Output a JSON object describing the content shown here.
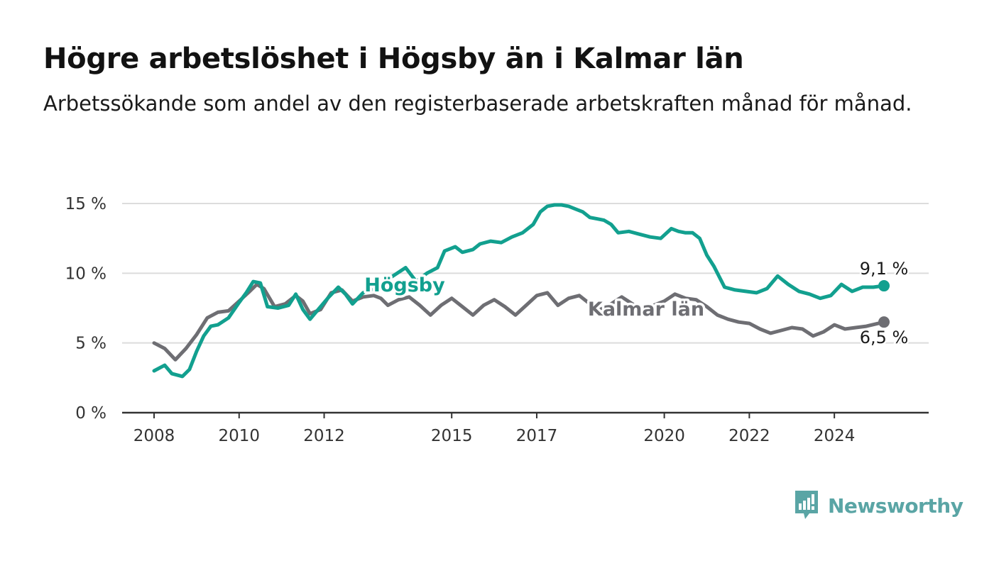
{
  "title": "Högre arbetslöshet i Högsby än i Kalmar län",
  "subtitle": "Arbetssökande som andel av den registerbaserade arbetskraften månad för månad.",
  "brand": {
    "name": "Newsworthy",
    "color": "#5aa5a5",
    "icon": "bar-chart-speech-bubble-icon"
  },
  "chart_data": {
    "type": "line",
    "xlim": [
      "2008-01",
      "2025-12"
    ],
    "ylim": [
      0,
      16
    ],
    "yticks": [
      0,
      5,
      10,
      15
    ],
    "ytick_labels": [
      "0 %",
      "5 %",
      "10 %",
      "15 %"
    ],
    "xticks": [
      "2008",
      "2010",
      "2012",
      "2015",
      "2017",
      "2020",
      "2022",
      "2024"
    ],
    "grid": "horizontal",
    "legend": "inline labels on lines",
    "series": [
      {
        "name": "Högsby",
        "color": "#12a08f",
        "end_label": "9,1 %",
        "points": [
          [
            "2008-01",
            3.0
          ],
          [
            "2008-04",
            3.4
          ],
          [
            "2008-06",
            2.8
          ],
          [
            "2008-09",
            2.6
          ],
          [
            "2008-11",
            3.1
          ],
          [
            "2009-01",
            4.4
          ],
          [
            "2009-03",
            5.5
          ],
          [
            "2009-05",
            6.2
          ],
          [
            "2009-07",
            6.3
          ],
          [
            "2009-10",
            6.8
          ],
          [
            "2010-01",
            7.9
          ],
          [
            "2010-03",
            8.6
          ],
          [
            "2010-05",
            9.4
          ],
          [
            "2010-07",
            9.3
          ],
          [
            "2010-09",
            7.6
          ],
          [
            "2010-12",
            7.5
          ],
          [
            "2011-03",
            7.7
          ],
          [
            "2011-05",
            8.5
          ],
          [
            "2011-07",
            7.4
          ],
          [
            "2011-09",
            6.7
          ],
          [
            "2011-11",
            7.3
          ],
          [
            "2012-02",
            8.2
          ],
          [
            "2012-05",
            9.0
          ],
          [
            "2012-07",
            8.5
          ],
          [
            "2012-09",
            7.8
          ],
          [
            "2012-12",
            8.6
          ],
          [
            "2013-03",
            8.9
          ],
          [
            "2013-06",
            9.4
          ],
          [
            "2013-09",
            9.9
          ],
          [
            "2013-12",
            10.4
          ],
          [
            "2014-03",
            9.4
          ],
          [
            "2014-06",
            10.0
          ],
          [
            "2014-09",
            10.4
          ],
          [
            "2014-11",
            11.6
          ],
          [
            "2015-02",
            11.9
          ],
          [
            "2015-04",
            11.5
          ],
          [
            "2015-07",
            11.7
          ],
          [
            "2015-09",
            12.1
          ],
          [
            "2015-12",
            12.3
          ],
          [
            "2016-03",
            12.2
          ],
          [
            "2016-06",
            12.6
          ],
          [
            "2016-09",
            12.9
          ],
          [
            "2016-12",
            13.5
          ],
          [
            "2017-02",
            14.4
          ],
          [
            "2017-04",
            14.8
          ],
          [
            "2017-06",
            14.9
          ],
          [
            "2017-08",
            14.9
          ],
          [
            "2017-10",
            14.8
          ],
          [
            "2017-12",
            14.6
          ],
          [
            "2018-02",
            14.4
          ],
          [
            "2018-04",
            14.0
          ],
          [
            "2018-06",
            13.9
          ],
          [
            "2018-08",
            13.8
          ],
          [
            "2018-10",
            13.5
          ],
          [
            "2018-12",
            12.9
          ],
          [
            "2019-03",
            13.0
          ],
          [
            "2019-06",
            12.8
          ],
          [
            "2019-09",
            12.6
          ],
          [
            "2019-12",
            12.5
          ],
          [
            "2020-03",
            13.2
          ],
          [
            "2020-05",
            13.0
          ],
          [
            "2020-07",
            12.9
          ],
          [
            "2020-09",
            12.9
          ],
          [
            "2020-11",
            12.5
          ],
          [
            "2021-01",
            11.3
          ],
          [
            "2021-03",
            10.5
          ],
          [
            "2021-06",
            9.0
          ],
          [
            "2021-09",
            8.8
          ],
          [
            "2021-12",
            8.7
          ],
          [
            "2022-03",
            8.6
          ],
          [
            "2022-06",
            8.9
          ],
          [
            "2022-09",
            9.8
          ],
          [
            "2022-12",
            9.2
          ],
          [
            "2023-03",
            8.7
          ],
          [
            "2023-06",
            8.5
          ],
          [
            "2023-09",
            8.2
          ],
          [
            "2023-12",
            8.4
          ],
          [
            "2024-03",
            9.2
          ],
          [
            "2024-06",
            8.7
          ],
          [
            "2024-09",
            9.0
          ],
          [
            "2024-12",
            9.0
          ],
          [
            "2025-03",
            9.1
          ]
        ]
      },
      {
        "name": "Kalmar län",
        "color": "#6e6e73",
        "end_label": "6,5 %",
        "points": [
          [
            "2008-01",
            5.0
          ],
          [
            "2008-04",
            4.6
          ],
          [
            "2008-07",
            3.8
          ],
          [
            "2008-10",
            4.6
          ],
          [
            "2009-01",
            5.6
          ],
          [
            "2009-04",
            6.8
          ],
          [
            "2009-07",
            7.2
          ],
          [
            "2009-10",
            7.3
          ],
          [
            "2010-01",
            8.0
          ],
          [
            "2010-04",
            8.7
          ],
          [
            "2010-06",
            9.2
          ],
          [
            "2010-08",
            8.9
          ],
          [
            "2010-11",
            7.6
          ],
          [
            "2011-02",
            7.8
          ],
          [
            "2011-05",
            8.4
          ],
          [
            "2011-07",
            8.0
          ],
          [
            "2011-09",
            7.1
          ],
          [
            "2011-12",
            7.4
          ],
          [
            "2012-03",
            8.6
          ],
          [
            "2012-06",
            8.8
          ],
          [
            "2012-09",
            8.0
          ],
          [
            "2012-12",
            8.3
          ],
          [
            "2013-03",
            8.4
          ],
          [
            "2013-05",
            8.2
          ],
          [
            "2013-07",
            7.7
          ],
          [
            "2013-10",
            8.1
          ],
          [
            "2014-01",
            8.3
          ],
          [
            "2014-04",
            7.7
          ],
          [
            "2014-07",
            7.0
          ],
          [
            "2014-10",
            7.7
          ],
          [
            "2015-01",
            8.2
          ],
          [
            "2015-04",
            7.6
          ],
          [
            "2015-07",
            7.0
          ],
          [
            "2015-10",
            7.7
          ],
          [
            "2016-01",
            8.1
          ],
          [
            "2016-04",
            7.6
          ],
          [
            "2016-07",
            7.0
          ],
          [
            "2016-10",
            7.7
          ],
          [
            "2017-01",
            8.4
          ],
          [
            "2017-04",
            8.6
          ],
          [
            "2017-07",
            7.7
          ],
          [
            "2017-10",
            8.2
          ],
          [
            "2018-01",
            8.4
          ],
          [
            "2018-04",
            7.8
          ],
          [
            "2018-07",
            7.4
          ],
          [
            "2018-10",
            7.8
          ],
          [
            "2019-01",
            8.3
          ],
          [
            "2019-04",
            7.8
          ],
          [
            "2019-07",
            7.3
          ],
          [
            "2019-10",
            7.7
          ],
          [
            "2020-01",
            8.0
          ],
          [
            "2020-04",
            8.5
          ],
          [
            "2020-07",
            8.2
          ],
          [
            "2020-10",
            8.1
          ],
          [
            "2021-01",
            7.6
          ],
          [
            "2021-04",
            7.0
          ],
          [
            "2021-07",
            6.7
          ],
          [
            "2021-10",
            6.5
          ],
          [
            "2022-01",
            6.4
          ],
          [
            "2022-04",
            6.0
          ],
          [
            "2022-07",
            5.7
          ],
          [
            "2022-10",
            5.9
          ],
          [
            "2023-01",
            6.1
          ],
          [
            "2023-04",
            6.0
          ],
          [
            "2023-07",
            5.5
          ],
          [
            "2023-10",
            5.8
          ],
          [
            "2024-01",
            6.3
          ],
          [
            "2024-04",
            6.0
          ],
          [
            "2024-07",
            6.1
          ],
          [
            "2024-10",
            6.2
          ],
          [
            "2025-03",
            6.5
          ]
        ]
      }
    ]
  }
}
